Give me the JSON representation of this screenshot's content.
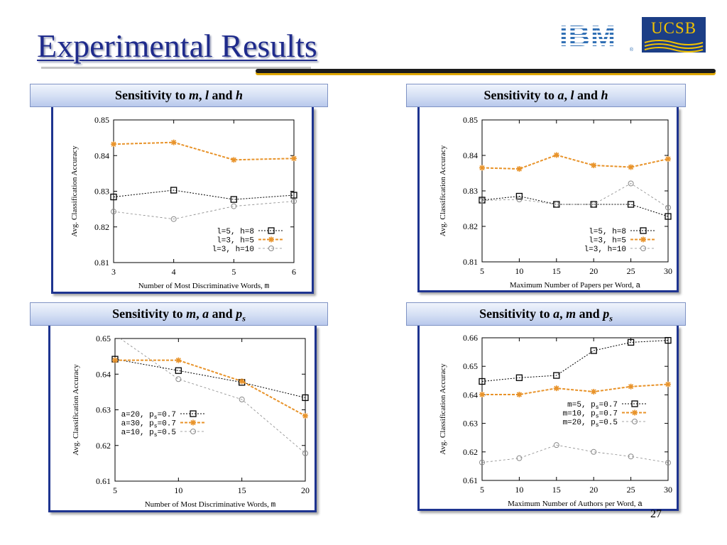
{
  "title": "Experimental Results",
  "page_number": "27",
  "logos": {
    "ibm": "IBM",
    "ucsb": "UCSB"
  },
  "panels": [
    {
      "heading_prefix": "Sensitivity to ",
      "heading_var1": "m",
      "heading_sep": ", ",
      "heading_var2": "l",
      "heading_and": " and ",
      "heading_var3": "h",
      "heading_sub": ""
    },
    {
      "heading_prefix": "Sensitivity to ",
      "heading_var1": "a",
      "heading_sep": ", ",
      "heading_var2": "l",
      "heading_and": " and ",
      "heading_var3": "h",
      "heading_sub": ""
    },
    {
      "heading_prefix": "Sensitivity to ",
      "heading_var1": "m",
      "heading_sep": ", ",
      "heading_var2": "a",
      "heading_and": " and ",
      "heading_var3": "p",
      "heading_sub": "s"
    },
    {
      "heading_prefix": "Sensitivity to ",
      "heading_var1": "a",
      "heading_sep": ", ",
      "heading_var2": "m",
      "heading_and": " and ",
      "heading_var3": "p",
      "heading_sub": "s"
    }
  ],
  "chart_data": [
    {
      "type": "line",
      "xlabel": "Number of Most Discriminative Words, ",
      "xlabel_var": "m",
      "ylabel": "Avg. Classification Accuracy",
      "x": [
        3,
        4,
        5,
        6
      ],
      "xlim": [
        3,
        6
      ],
      "ylim": [
        0.81,
        0.85
      ],
      "yticks": [
        0.81,
        0.82,
        0.83,
        0.84,
        0.85
      ],
      "ytick_labels": [
        "0.81",
        "0.82",
        "0.83",
        "0.84",
        "0.85"
      ],
      "xticks": [
        3,
        4,
        5,
        6
      ],
      "xtick_labels": [
        "3",
        "4",
        "5",
        "6"
      ],
      "legend_position": "bottom-right",
      "series": [
        {
          "name": "l=5, h=8",
          "marker": "square",
          "color": "#000000",
          "values": [
            0.8284,
            0.8303,
            0.8277,
            0.8289
          ]
        },
        {
          "name": "l=3, h=5",
          "marker": "asterisk",
          "color": "#e8932a",
          "values": [
            0.8432,
            0.8437,
            0.8388,
            0.8392
          ]
        },
        {
          "name": "l=3, h=10",
          "marker": "circle",
          "color": "#888888",
          "values": [
            0.8243,
            0.8222,
            0.8258,
            0.8272
          ]
        }
      ]
    },
    {
      "type": "line",
      "xlabel": "Maximum Number of Papers per Word, ",
      "xlabel_var": "a",
      "ylabel": "Avg. Classification Accuracy",
      "x": [
        5,
        10,
        15,
        20,
        25,
        30
      ],
      "xlim": [
        5,
        30
      ],
      "ylim": [
        0.81,
        0.85
      ],
      "yticks": [
        0.81,
        0.82,
        0.83,
        0.84,
        0.85
      ],
      "ytick_labels": [
        "0.81",
        "0.82",
        "0.83",
        "0.84",
        "0.85"
      ],
      "xticks": [
        5,
        10,
        15,
        20,
        25,
        30
      ],
      "xtick_labels": [
        "5",
        "10",
        "15",
        "20",
        "25",
        "30"
      ],
      "legend_position": "bottom-right",
      "series": [
        {
          "name": "l=5, h=8",
          "marker": "square",
          "color": "#000000",
          "values": [
            0.8274,
            0.8285,
            0.8262,
            0.8262,
            0.8262,
            0.8228
          ]
        },
        {
          "name": "l=3, h=5",
          "marker": "asterisk",
          "color": "#e8932a",
          "values": [
            0.8365,
            0.8362,
            0.8401,
            0.8372,
            0.8367,
            0.839
          ]
        },
        {
          "name": "l=3, h=10",
          "marker": "circle",
          "color": "#888888",
          "values": [
            0.8273,
            0.8276,
            0.8262,
            0.8262,
            0.8321,
            0.8253
          ]
        }
      ]
    },
    {
      "type": "line",
      "xlabel": "Number of Most Discriminative Words, ",
      "xlabel_var": "m",
      "ylabel": "Avg. Classification Accuracy",
      "x": [
        5,
        10,
        15,
        20
      ],
      "xlim": [
        5,
        20
      ],
      "ylim": [
        0.61,
        0.65
      ],
      "yticks": [
        0.61,
        0.62,
        0.63,
        0.64,
        0.65
      ],
      "ytick_labels": [
        "0.61",
        "0.62",
        "0.63",
        "0.64",
        "0.65"
      ],
      "xticks": [
        5,
        10,
        15,
        20
      ],
      "xtick_labels": [
        "5",
        "10",
        "15",
        "20"
      ],
      "legend_position": "center-left",
      "series": [
        {
          "name": "a=20, p",
          "name_sub": "s",
          "name_tail": "=0.7",
          "marker": "square",
          "color": "#000000",
          "values": [
            0.6442,
            0.641,
            0.6377,
            0.6334
          ]
        },
        {
          "name": "a=30, p",
          "name_sub": "s",
          "name_tail": "=0.7",
          "marker": "asterisk",
          "color": "#e8932a",
          "values": [
            0.6439,
            0.6439,
            0.638,
            0.6283
          ]
        },
        {
          "name": "a=10, p",
          "name_sub": "s",
          "name_tail": "=0.5",
          "marker": "circle",
          "color": "#888888",
          "values": [
            0.651,
            0.6386,
            0.6329,
            0.6178
          ]
        }
      ]
    },
    {
      "type": "line",
      "xlabel": "Maximum Number of Authors per Word, ",
      "xlabel_var": "a",
      "ylabel": "Avg. Classification Accuracy",
      "x": [
        5,
        10,
        15,
        20,
        25,
        30
      ],
      "xlim": [
        5,
        30
      ],
      "ylim": [
        0.61,
        0.66
      ],
      "yticks": [
        0.61,
        0.62,
        0.63,
        0.64,
        0.65,
        0.66
      ],
      "ytick_labels": [
        "0.61",
        "0.62",
        "0.63",
        "0.64",
        "0.65",
        "0.66"
      ],
      "xticks": [
        5,
        10,
        15,
        20,
        25,
        30
      ],
      "xtick_labels": [
        "5",
        "10",
        "15",
        "20",
        "25",
        "30"
      ],
      "legend_position": "center-right",
      "series": [
        {
          "name": "m=5, p",
          "name_sub": "s",
          "name_tail": "=0.7",
          "marker": "square",
          "color": "#000000",
          "values": [
            0.6447,
            0.646,
            0.6468,
            0.6555,
            0.6584,
            0.6591
          ]
        },
        {
          "name": "m=10, p",
          "name_sub": "s",
          "name_tail": "=0.7",
          "marker": "asterisk",
          "color": "#e8932a",
          "values": [
            0.6401,
            0.6401,
            0.6423,
            0.6411,
            0.6429,
            0.6437
          ]
        },
        {
          "name": "m=20, p",
          "name_sub": "s",
          "name_tail": "=0.5",
          "marker": "circle",
          "color": "#888888",
          "values": [
            0.6163,
            0.6178,
            0.6224,
            0.62,
            0.6184,
            0.6162
          ]
        }
      ]
    }
  ]
}
